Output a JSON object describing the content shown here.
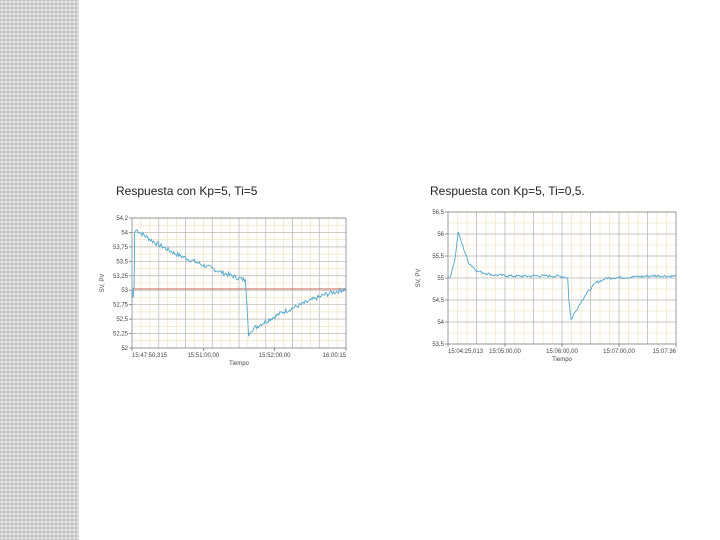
{
  "colors": {
    "series": "#4fa6cf",
    "setpoint": "#c25a4a",
    "grid_major": "#b8b8b8",
    "grid_minor": "#f0e0b8",
    "side_strip": "#d2d2d2"
  },
  "chart_data": [
    {
      "type": "line",
      "title": "Respuesta con Kp=5, Ti=5",
      "xlabel": "Tiempo",
      "ylabel": "SV, PV",
      "x_ticks": [
        "15:47:50,315",
        "15:51:00,00",
        "15:52:00,00",
        "16:00:15"
      ],
      "y_ticks": [
        "54,2",
        "54",
        "53,75",
        "53,5",
        "53,25",
        "53",
        "52,75",
        "52,5",
        "52,25",
        "52"
      ],
      "ylim": [
        52,
        54.2
      ],
      "xlim": [
        0,
        1
      ],
      "grid": true,
      "setpoint": {
        "y": 53
      },
      "series": [
        {
          "points": [
            [
              0,
              53
            ],
            [
              0.005,
              52.85
            ],
            [
              0.01,
              53.05
            ],
            [
              0.012,
              53.95
            ],
            [
              0.02,
              54.0
            ],
            [
              0.1,
              53.8
            ],
            [
              0.2,
              53.6
            ],
            [
              0.3,
              53.45
            ],
            [
              0.42,
              53.28
            ],
            [
              0.5,
              53.18
            ],
            [
              0.53,
              53.15
            ],
            [
              0.545,
              52.2
            ],
            [
              0.555,
              52.3
            ],
            [
              0.6,
              52.4
            ],
            [
              0.7,
              52.6
            ],
            [
              0.8,
              52.75
            ],
            [
              0.9,
              52.9
            ],
            [
              0.97,
              52.97
            ],
            [
              1.0,
              53.0
            ]
          ],
          "noise": 0.04
        }
      ]
    },
    {
      "type": "line",
      "title": "Respuesta con Kp=5, Ti=0,5.",
      "xlabel": "Tiempo",
      "ylabel": "SV, PV",
      "x_ticks": [
        "15:04:25,013",
        "15:05:00,00",
        "15:06:00,00",
        "15:07:00,00",
        "15:07:36"
      ],
      "y_ticks": [
        "56,5",
        "56",
        "55,5",
        "55",
        "54,5",
        "54",
        "53,5"
      ],
      "ylim": [
        53.5,
        56.5
      ],
      "xlim": [
        0,
        1
      ],
      "grid": true,
      "series": [
        {
          "points": [
            [
              0,
              55.0
            ],
            [
              0.01,
              55.02
            ],
            [
              0.03,
              55.4
            ],
            [
              0.045,
              56.05
            ],
            [
              0.06,
              55.8
            ],
            [
              0.09,
              55.35
            ],
            [
              0.13,
              55.15
            ],
            [
              0.2,
              55.07
            ],
            [
              0.3,
              55.04
            ],
            [
              0.4,
              55.05
            ],
            [
              0.5,
              55.04
            ],
            [
              0.525,
              55.0
            ],
            [
              0.53,
              54.5
            ],
            [
              0.54,
              54.05
            ],
            [
              0.56,
              54.25
            ],
            [
              0.6,
              54.6
            ],
            [
              0.65,
              54.9
            ],
            [
              0.7,
              55.0
            ],
            [
              0.8,
              55.02
            ],
            [
              0.9,
              55.05
            ],
            [
              1.0,
              55.04
            ]
          ],
          "noise": 0.03
        }
      ]
    }
  ]
}
